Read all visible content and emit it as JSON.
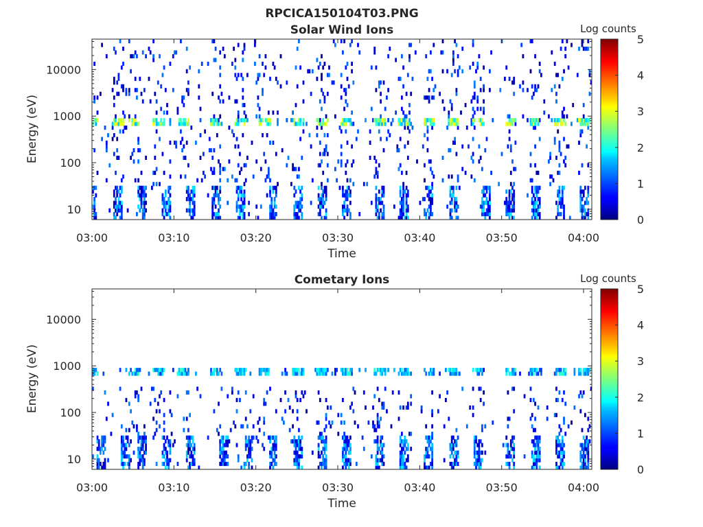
{
  "figure_title": "RPCICA150104T03.PNG",
  "colorbar": {
    "label": "Log counts",
    "min": 0,
    "max": 5,
    "ticks": [
      "0",
      "1",
      "2",
      "3",
      "4",
      "5"
    ],
    "colormap": "jet"
  },
  "chart_data": [
    {
      "type": "heatmap",
      "title": "Solar Wind Ions",
      "xlabel": "Time",
      "ylabel": "Energy (eV)",
      "xlim": [
        "03:00",
        "04:01"
      ],
      "ylim": [
        6,
        45000
      ],
      "yscale": "log",
      "x_ticks": [
        "03:00",
        "03:10",
        "03:20",
        "03:30",
        "03:40",
        "03:50",
        "04:00"
      ],
      "y_ticks": [
        "10",
        "100",
        "1000",
        "10000"
      ],
      "features": {
        "main_band_energy_eV": [
          600,
          800
        ],
        "main_band_times": [
          "03:00",
          "03:03",
          "03:05",
          "03:08",
          "03:11",
          "03:15",
          "03:18",
          "03:21",
          "03:25",
          "03:28",
          "03:31",
          "03:35",
          "03:38",
          "03:41",
          "03:44",
          "03:47",
          "03:51",
          "03:54",
          "03:57",
          "04:00"
        ],
        "main_band_peak_log_counts": 3.2,
        "low_energy_eV": [
          6,
          30
        ],
        "low_energy_times": [
          "03:00",
          "03:03",
          "03:06",
          "03:09",
          "03:12",
          "03:15",
          "03:18",
          "03:22",
          "03:25",
          "03:28",
          "03:31",
          "03:35",
          "03:38",
          "03:41",
          "03:44",
          "03:48",
          "03:51",
          "03:54",
          "03:57",
          "04:00"
        ],
        "scatter_energy_eV": [
          30,
          45000
        ]
      }
    },
    {
      "type": "heatmap",
      "title": "Cometary Ions",
      "xlabel": "Time",
      "ylabel": "Energy (eV)",
      "xlim": [
        "03:00",
        "04:01"
      ],
      "ylim": [
        6,
        45000
      ],
      "yscale": "log",
      "x_ticks": [
        "03:00",
        "03:10",
        "03:20",
        "03:30",
        "03:40",
        "03:50",
        "04:00"
      ],
      "y_ticks": [
        "10",
        "100",
        "1000",
        "10000"
      ],
      "features": {
        "main_band_energy_eV": [
          650,
          800
        ],
        "main_band_times": [
          "03:00",
          "03:05",
          "03:08",
          "03:11",
          "03:15",
          "03:18",
          "03:21",
          "03:25",
          "03:28",
          "03:31",
          "03:35",
          "03:38",
          "03:41",
          "03:44",
          "03:47",
          "03:51",
          "03:54",
          "03:57",
          "04:00"
        ],
        "main_band_peak_log_counts": 2.2,
        "low_energy_eV": [
          6,
          30
        ],
        "low_energy_times": [
          "03:01",
          "03:04",
          "03:06",
          "03:09",
          "03:12",
          "03:16",
          "03:19",
          "03:22",
          "03:25",
          "03:28",
          "03:31",
          "03:35",
          "03:38",
          "03:41",
          "03:44",
          "03:47",
          "03:51",
          "03:54",
          "03:57",
          "04:00"
        ],
        "scatter_energy_eV": [
          30,
          300
        ]
      }
    }
  ]
}
